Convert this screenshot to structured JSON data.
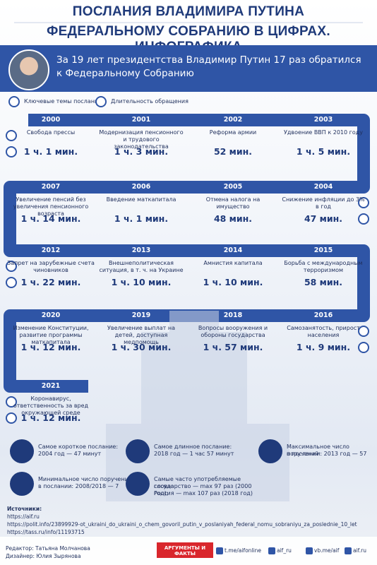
{
  "header": {
    "title_line1": "ПОСЛАНИЯ ВЛАДИМИРА ПУТИНА",
    "title_line2": "ФЕДЕРАЛЬНОМУ СОБРАНИЮ В ЦИФРАХ. ИНФОГРАФИКА"
  },
  "intro": "За 19 лет президентства Владимир Путин 17 раз обратился к Федеральному Собранию",
  "legend": {
    "topics": "Ключевые темы послания",
    "duration": "Длительность обращения"
  },
  "timeline": {
    "rows": [
      [
        {
          "year": "2000",
          "topic": "Свобода прессы",
          "duration": "1 ч. 1 мин."
        },
        {
          "year": "2001",
          "topic": "Модернизация пенсионного и трудового законодательства",
          "duration": "1 ч. 3 мин."
        },
        {
          "year": "2002",
          "topic": "Реформа армии",
          "duration": "52 мин."
        },
        {
          "year": "2003",
          "topic": "Удвоение ВВП к 2010 году",
          "duration": "1 ч. 5 мин."
        }
      ],
      [
        {
          "year": "2007",
          "topic": "Увеличение пенсий без увеличения пенсионного возраста",
          "duration": "1 ч. 14 мин."
        },
        {
          "year": "2006",
          "topic": "Введение маткапитала",
          "duration": "1 ч. 1 мин."
        },
        {
          "year": "2005",
          "topic": "Отмена налога на имущество",
          "duration": "48 мин."
        },
        {
          "year": "2004",
          "topic": "Снижение инфляции до 3% в год",
          "duration": "47 мин."
        }
      ],
      [
        {
          "year": "2012",
          "topic": "Запрет на зарубежные счета чиновников",
          "duration": "1 ч. 22 мин."
        },
        {
          "year": "2013",
          "topic": "Внешнеполитическая ситуация, в т. ч. на Украине",
          "duration": "1 ч. 10 мин."
        },
        {
          "year": "2014",
          "topic": "Амнистия капитала",
          "duration": "1 ч. 10 мин."
        },
        {
          "year": "2015",
          "topic": "Борьба с международным терроризмом",
          "duration": "58 мин."
        }
      ],
      [
        {
          "year": "2020",
          "topic": "Изменение Конституции, развитие программы маткапитала",
          "duration": "1 ч. 12 мин."
        },
        {
          "year": "2019",
          "topic": "Увеличение выплат на детей, доступная медпомощь",
          "duration": "1 ч. 30 мин."
        },
        {
          "year": "2018",
          "topic": "Вопросы вооружения и обороны государства",
          "duration": "1 ч. 57 мин."
        },
        {
          "year": "2016",
          "topic": "Самозанятость, прирост населения",
          "duration": "1 ч. 9 мин."
        }
      ],
      [
        {
          "year": "2021",
          "topic": "Коронавирус, ответственность за вред окружающей среде",
          "duration": "1 ч. 12 мин."
        }
      ]
    ]
  },
  "facts": [
    {
      "label": "Самое короткое послание:",
      "value": "2004 год — 47 минут"
    },
    {
      "label": "Самое длинное послание:",
      "value": "2018 год — 1 час 57 минут"
    },
    {
      "label": "Максимальное число поручений",
      "value": "в послании: 2013 год — 57"
    },
    {
      "label": "Минимальное число поручений",
      "value": "в послании: 2008/2018 — 7"
    },
    {
      "label": "Самые часто употребляемые слова:",
      "value": "государство — max 97 раз (2000 год);",
      "value2": "Россия — max 107 раз (2018 год)"
    }
  ],
  "sources": {
    "title": "Источники:",
    "links": [
      "https://aif.ru",
      "https://polit.info/23899929-ot_ukraini_do_ukraini_o_chem_govoril_putin_v_poslaniyah_federal_nomu_sobraniyu_za_poslednie_10_let",
      "https://tass.ru/info/11193715"
    ]
  },
  "footer": {
    "editor": "Редактор: Татьяна Молчанова",
    "designer": "Дизайнер: Юлия Зырянова",
    "brand": "АРГУМЕНТЫ И ФАКТЫ",
    "links": [
      "t.me/aifonline",
      "aif_ru",
      "vb.me/aif",
      "aif.ru"
    ]
  }
}
